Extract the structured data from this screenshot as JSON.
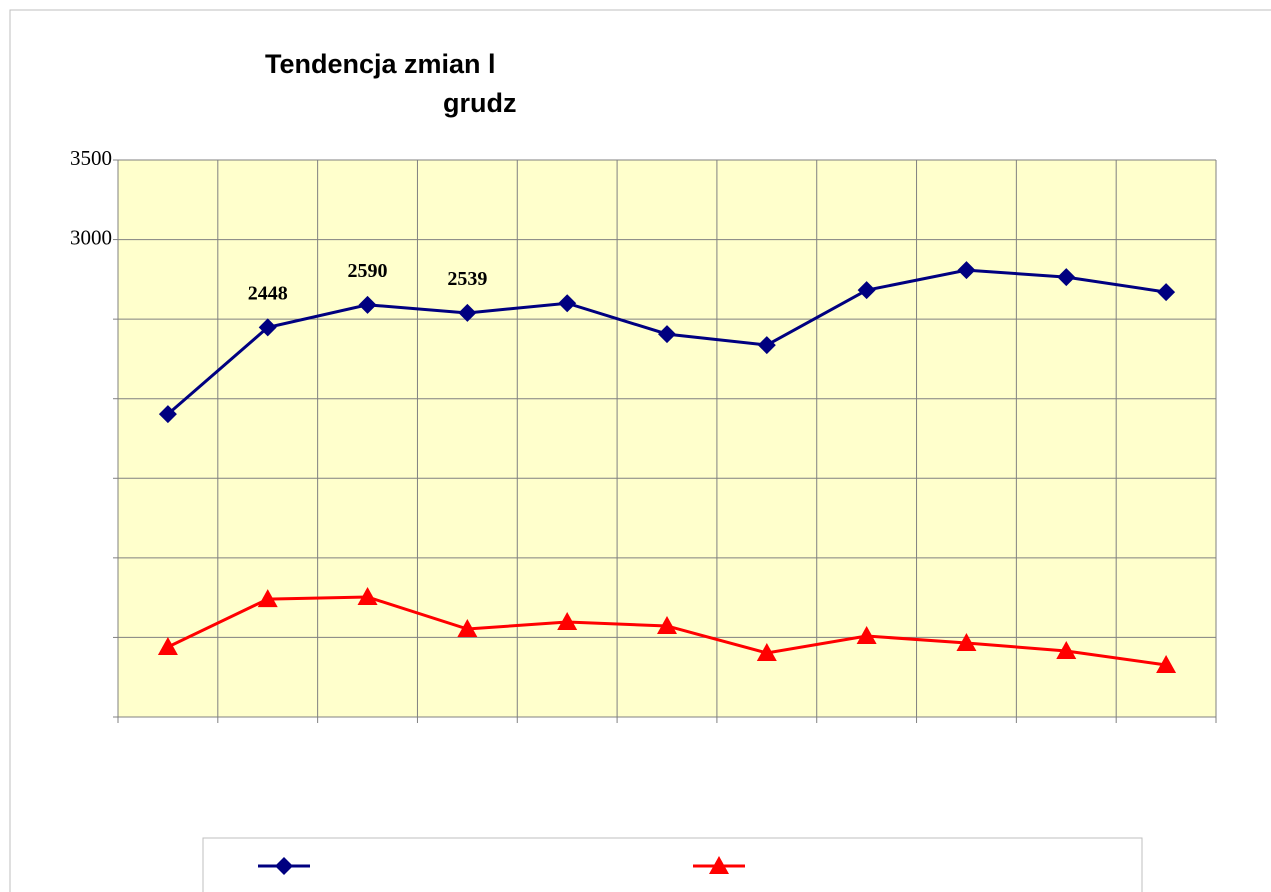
{
  "chart_data": {
    "type": "line",
    "title": [
      "Tendencja zmian l",
      "grudz"
    ],
    "categories": [
      null,
      null,
      null,
      null,
      null,
      null,
      null,
      null,
      null,
      null,
      null
    ],
    "series": [
      {
        "color": "#000080",
        "marker": "diamond",
        "values": [
          1903,
          2448,
          2590,
          2539,
          2600,
          2406,
          2337,
          2682,
          2808,
          2764,
          2670
        ],
        "value_labels": [
          "2448",
          "2590",
          "2539"
        ],
        "value_label_start": 1
      },
      {
        "color": "#ff0000",
        "marker": "triangle",
        "values": [
          440,
          741,
          754,
          553,
          597,
          572,
          402,
          509,
          465,
          415,
          327
        ]
      }
    ],
    "ylim": [
      0,
      3500
    ],
    "yticks": [
      {
        "value": 0,
        "label": null
      },
      {
        "value": 500,
        "label": null
      },
      {
        "value": 1000,
        "label": null
      },
      {
        "value": 1500,
        "label": null
      },
      {
        "value": 2000,
        "label": null
      },
      {
        "value": 2500,
        "label": null
      },
      3000,
      3500
    ],
    "grid": true,
    "plot_background": "#ffffcc"
  }
}
